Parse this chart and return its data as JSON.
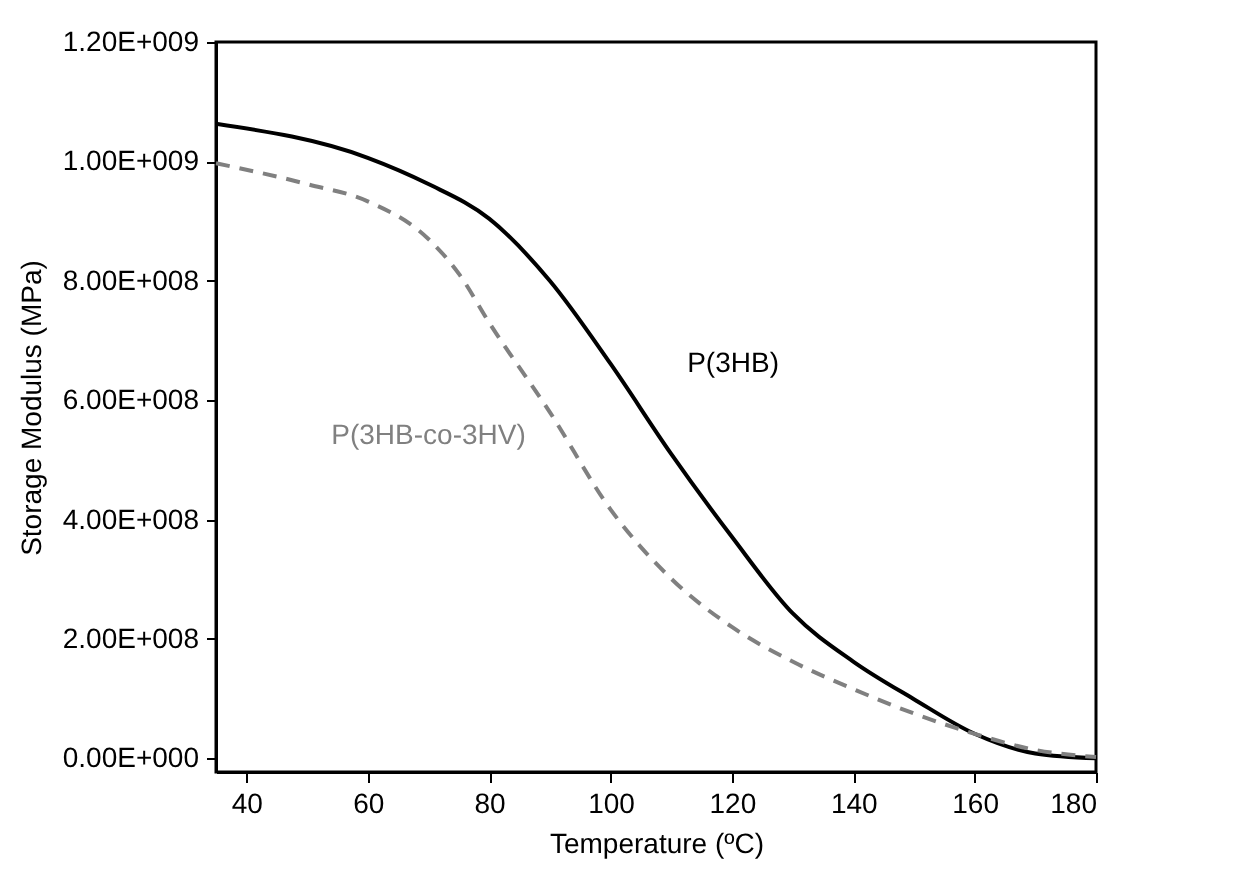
{
  "chart_data": {
    "type": "line",
    "xlabel": "Temperature (ºC)",
    "ylabel": "Storage Modulus (MPa)",
    "xlim": [
      35,
      180
    ],
    "xticks": [
      40,
      60,
      80,
      100,
      120,
      140,
      160,
      180
    ],
    "ylim": [
      -23000000,
      1200000000
    ],
    "yticks": [
      {
        "value": 0,
        "label": "0.00E+000"
      },
      {
        "value": 200000000,
        "label": "2.00E+008"
      },
      {
        "value": 400000000,
        "label": "4.00E+008"
      },
      {
        "value": 600000000,
        "label": "6.00E+008"
      },
      {
        "value": 800000000,
        "label": "8.00E+008"
      },
      {
        "value": 1000000000,
        "label": "1.00E+009"
      },
      {
        "value": 1200000000,
        "label": "1.20E+009"
      }
    ],
    "grid": false,
    "legend": false,
    "series": [
      {
        "name": "P(3HB)",
        "color": "#000000",
        "line_style": "solid",
        "x": [
          35,
          60,
          70,
          80,
          90,
          100,
          110,
          120,
          130,
          140,
          150,
          160,
          170,
          180
        ],
        "values": [
          1063000000,
          1006000000,
          962000000,
          904000000,
          800000000,
          661000000,
          510000000,
          371000000,
          243000000,
          162000000,
          99000000,
          41000000,
          8000000,
          0
        ]
      },
      {
        "name": "P(3HB-co-3HV)",
        "color": "#808080",
        "line_style": "dashed",
        "x": [
          35,
          50,
          60,
          70,
          75,
          80,
          90,
          100,
          110,
          120,
          130,
          140,
          150,
          160,
          170,
          180
        ],
        "values": [
          997000000,
          962000000,
          933000000,
          870000000,
          812000000,
          730000000,
          580000000,
          417000000,
          301000000,
          220000000,
          162000000,
          116000000,
          75000000,
          41000000,
          14000000,
          2000000
        ]
      }
    ]
  }
}
